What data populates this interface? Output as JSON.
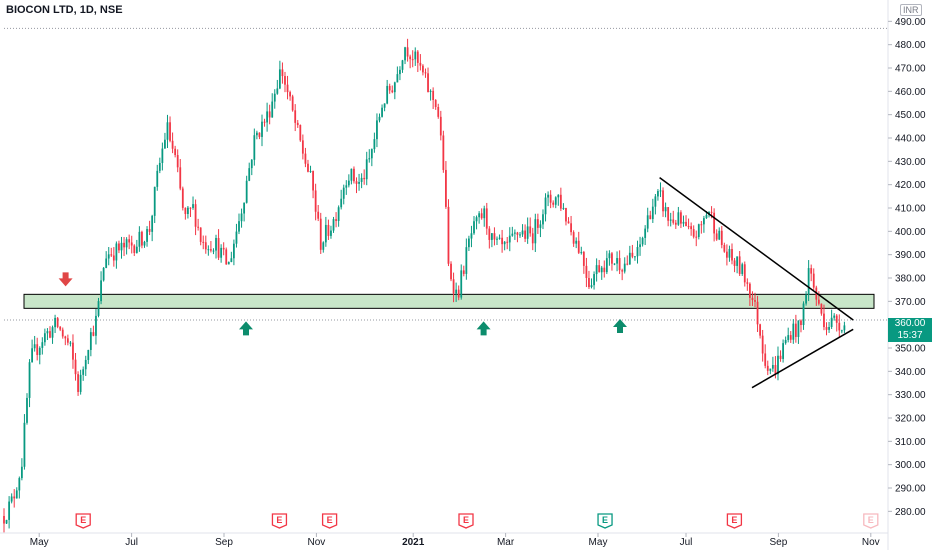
{
  "header": {
    "title": "BIOCON LTD, 1D, NSE",
    "currency": "INR"
  },
  "current": {
    "price_label": "360.00",
    "countdown": "15:37"
  },
  "colors": {
    "up": "#089981",
    "down": "#f23645",
    "zone_fill": "#c8e6c9",
    "trend": "#000000",
    "arrow_up": "#0c8c6c",
    "arrow_down": "#e04646"
  },
  "chart_data": {
    "type": "candlestick",
    "title": "BIOCON LTD, 1D, NSE",
    "y_axis": {
      "min": 272,
      "max": 494,
      "ticks": [
        280,
        290,
        300,
        310,
        320,
        330,
        340,
        350,
        360,
        370,
        380,
        390,
        400,
        410,
        420,
        430,
        440,
        450,
        460,
        470,
        480,
        490
      ],
      "unit": "INR"
    },
    "x_axis": {
      "ticks": [
        {
          "label": "May",
          "t": 0.04
        },
        {
          "label": "Jul",
          "t": 0.145
        },
        {
          "label": "Sep",
          "t": 0.25
        },
        {
          "label": "Nov",
          "t": 0.355
        },
        {
          "label": "2021",
          "t": 0.465
        },
        {
          "label": "Mar",
          "t": 0.57
        },
        {
          "label": "May",
          "t": 0.675
        },
        {
          "label": "Jul",
          "t": 0.775
        },
        {
          "label": "Sep",
          "t": 0.88
        },
        {
          "label": "Nov",
          "t": 0.985
        }
      ]
    },
    "price_path": [
      [
        0.0,
        278
      ],
      [
        0.01,
        285
      ],
      [
        0.02,
        300
      ],
      [
        0.03,
        345
      ],
      [
        0.045,
        355
      ],
      [
        0.06,
        360
      ],
      [
        0.075,
        350
      ],
      [
        0.085,
        332
      ],
      [
        0.095,
        352
      ],
      [
        0.105,
        362
      ],
      [
        0.115,
        390
      ],
      [
        0.13,
        392
      ],
      [
        0.15,
        395
      ],
      [
        0.165,
        400
      ],
      [
        0.175,
        425
      ],
      [
        0.185,
        445
      ],
      [
        0.195,
        430
      ],
      [
        0.205,
        405
      ],
      [
        0.215,
        410
      ],
      [
        0.225,
        395
      ],
      [
        0.24,
        395
      ],
      [
        0.255,
        385
      ],
      [
        0.27,
        410
      ],
      [
        0.285,
        440
      ],
      [
        0.3,
        450
      ],
      [
        0.315,
        470
      ],
      [
        0.325,
        455
      ],
      [
        0.335,
        440
      ],
      [
        0.35,
        420
      ],
      [
        0.36,
        395
      ],
      [
        0.375,
        405
      ],
      [
        0.39,
        425
      ],
      [
        0.405,
        420
      ],
      [
        0.415,
        430
      ],
      [
        0.43,
        455
      ],
      [
        0.445,
        465
      ],
      [
        0.455,
        480
      ],
      [
        0.465,
        475
      ],
      [
        0.475,
        468
      ],
      [
        0.485,
        458
      ],
      [
        0.492,
        455
      ],
      [
        0.5,
        425
      ],
      [
        0.505,
        385
      ],
      [
        0.515,
        372
      ],
      [
        0.53,
        398
      ],
      [
        0.545,
        408
      ],
      [
        0.555,
        395
      ],
      [
        0.57,
        392
      ],
      [
        0.585,
        400
      ],
      [
        0.6,
        398
      ],
      [
        0.615,
        412
      ],
      [
        0.63,
        415
      ],
      [
        0.645,
        400
      ],
      [
        0.655,
        392
      ],
      [
        0.665,
        378
      ],
      [
        0.675,
        385
      ],
      [
        0.69,
        388
      ],
      [
        0.705,
        386
      ],
      [
        0.72,
        390
      ],
      [
        0.735,
        410
      ],
      [
        0.745,
        415
      ],
      [
        0.755,
        405
      ],
      [
        0.765,
        405
      ],
      [
        0.78,
        398
      ],
      [
        0.79,
        400
      ],
      [
        0.8,
        410
      ],
      [
        0.81,
        400
      ],
      [
        0.82,
        390
      ],
      [
        0.835,
        385
      ],
      [
        0.845,
        378
      ],
      [
        0.855,
        365
      ],
      [
        0.865,
        345
      ],
      [
        0.875,
        340
      ],
      [
        0.885,
        350
      ],
      [
        0.895,
        358
      ],
      [
        0.905,
        358
      ],
      [
        0.915,
        385
      ],
      [
        0.925,
        368
      ],
      [
        0.935,
        360
      ],
      [
        0.945,
        362
      ],
      [
        0.955,
        360
      ]
    ],
    "zone": {
      "from": 367,
      "to": 373
    },
    "current_price": 360.0,
    "current_line_price": 362,
    "dotted_line_price": 487,
    "trendlines": [
      {
        "from": [
          0.745,
          423
        ],
        "to": [
          0.965,
          362
        ]
      },
      {
        "from": [
          0.85,
          333
        ],
        "to": [
          0.965,
          358
        ]
      }
    ],
    "arrows": [
      {
        "dir": "down",
        "t": 0.07,
        "price": 379
      },
      {
        "dir": "up",
        "t": 0.275,
        "price": 358
      },
      {
        "dir": "up",
        "t": 0.545,
        "price": 358
      },
      {
        "dir": "up",
        "t": 0.7,
        "price": 359
      }
    ],
    "earnings": [
      {
        "t": 0.09,
        "color": "#f23645",
        "label": "E"
      },
      {
        "t": 0.313,
        "color": "#f23645",
        "label": "E"
      },
      {
        "t": 0.37,
        "color": "#f23645",
        "label": "E"
      },
      {
        "t": 0.525,
        "color": "#f23645",
        "label": "E"
      },
      {
        "t": 0.683,
        "color": "#089981",
        "label": "E"
      },
      {
        "t": 0.83,
        "color": "#f23645",
        "label": "E"
      },
      {
        "t": 0.985,
        "color": "#f7b9bf",
        "label": "E"
      }
    ]
  }
}
